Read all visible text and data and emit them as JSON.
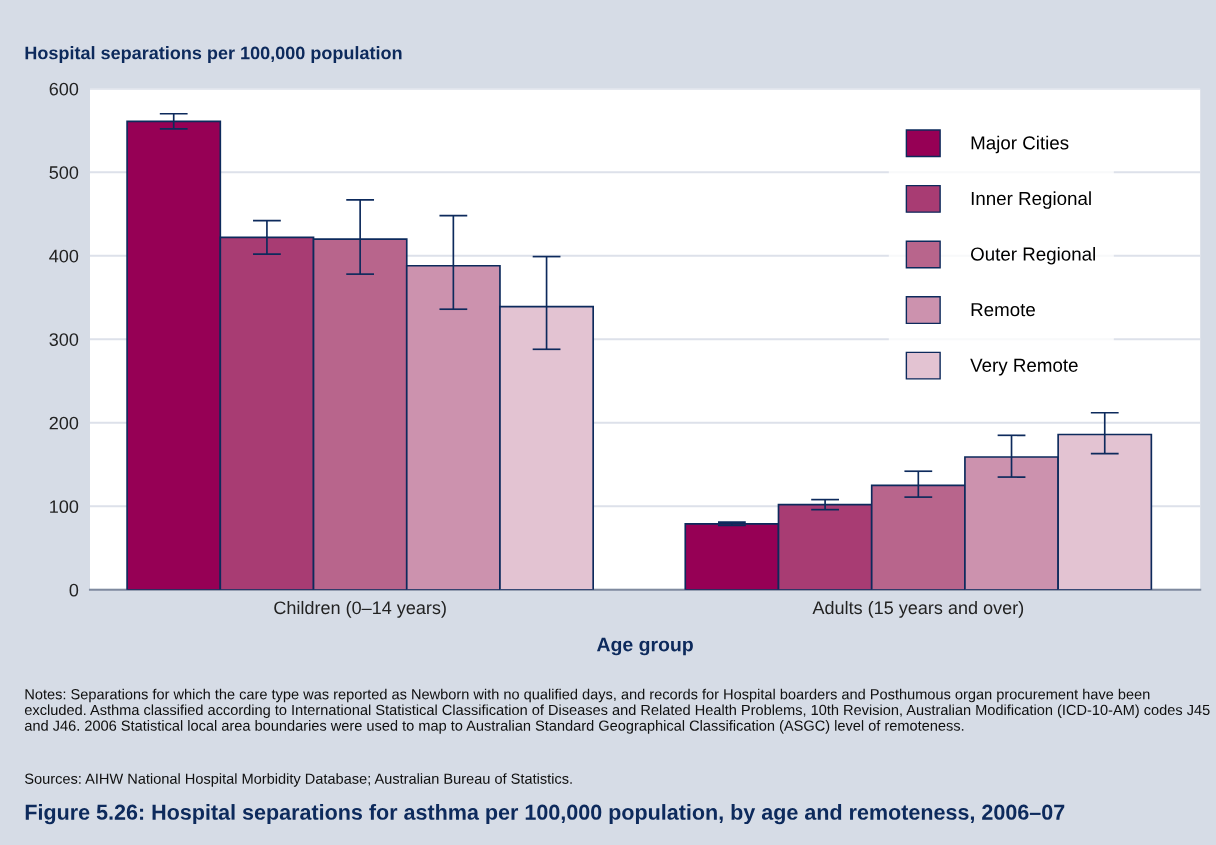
{
  "chart_data": {
    "type": "bar",
    "title": "Figure 5.26: Hospital separations for asthma per 100,000 population, by age and remoteness, 2006–07",
    "ylabel": "Hospital separations per 100,000 population",
    "xlabel": "Age group",
    "categories": [
      "Children (0–14 years)",
      "Adults (15 years and over)"
    ],
    "series": [
      {
        "name": "Major Cities",
        "color": "#960055",
        "values": [
          561,
          79
        ],
        "errors": [
          [
            552,
            570
          ],
          [
            77,
            81
          ]
        ]
      },
      {
        "name": "Inner Regional",
        "color": "#a83c73",
        "values": [
          422,
          102
        ],
        "errors": [
          [
            402,
            442
          ],
          [
            96,
            108
          ]
        ]
      },
      {
        "name": "Outer Regional",
        "color": "#b8658c",
        "values": [
          420,
          125
        ],
        "errors": [
          [
            378,
            467
          ],
          [
            111,
            142
          ]
        ]
      },
      {
        "name": "Remote",
        "color": "#cc92ae",
        "values": [
          388,
          159
        ],
        "errors": [
          [
            336,
            448
          ],
          [
            135,
            185
          ]
        ]
      },
      {
        "name": "Very Remote",
        "color": "#e3c3d2",
        "values": [
          339,
          186
        ],
        "errors": [
          [
            288,
            399
          ],
          [
            163,
            212
          ]
        ]
      }
    ],
    "ylim": [
      0,
      600
    ],
    "yticks": [
      0,
      100,
      200,
      300,
      400,
      500,
      600
    ],
    "grid": "y",
    "legend": "top right",
    "annotations": [
      "Notes: Separations for which the care type was reported as Newborn with no qualified days, and records for Hospital boarders and Posthumous organ procurement have been excluded. Asthma classified according to International Statistical Classification of Diseases and Related Health Problems, 10th Revision, Australian Modification (ICD-10-AM) codes J45 and J46. 2006 Statistical local area boundaries were used to map to Australian Standard Geographical Classification (ASGC) level of remoteness.",
      "Sources: AIHW National Hospital Morbidity Database; Australian Bureau of Statistics."
    ]
  }
}
